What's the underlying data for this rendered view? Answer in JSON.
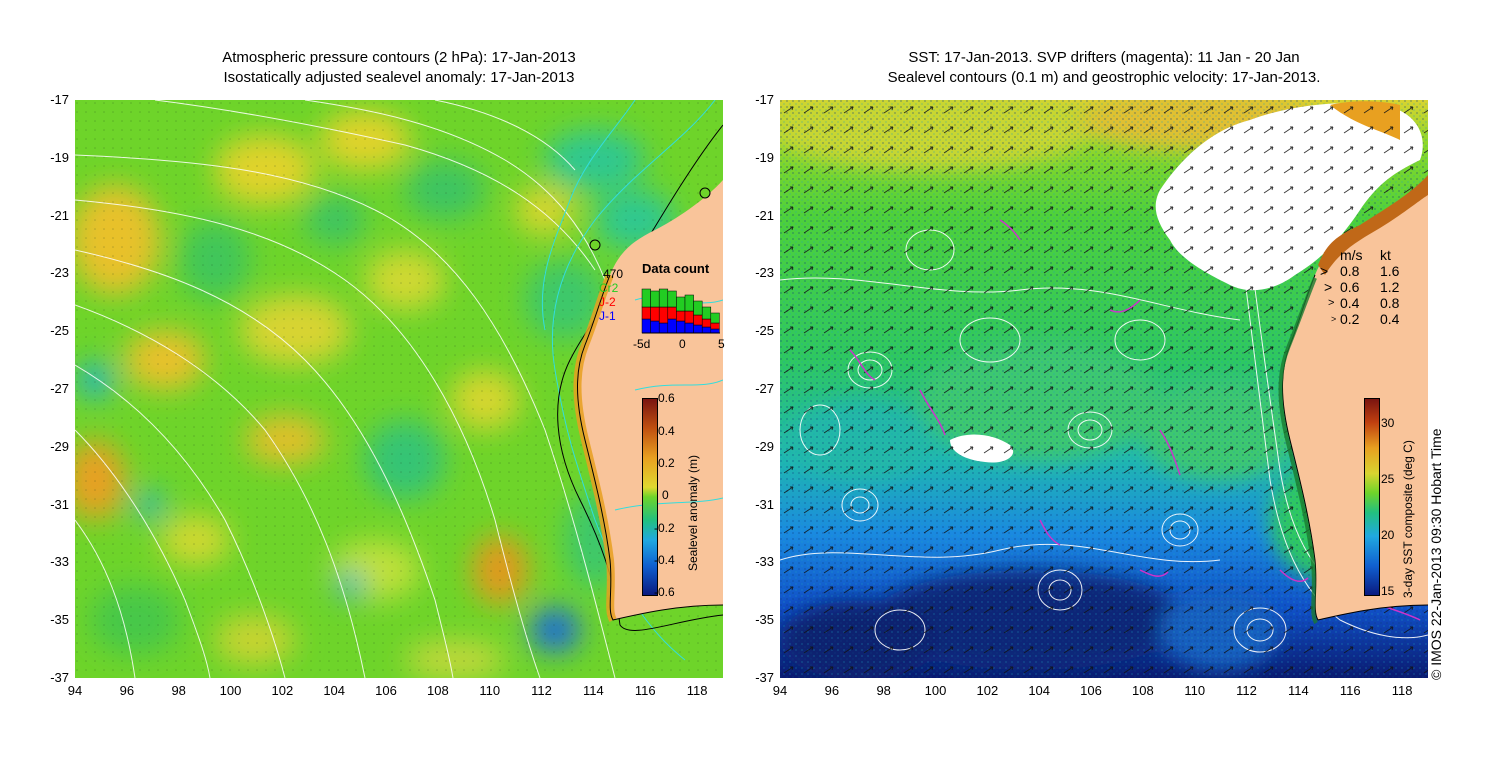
{
  "left_panel": {
    "title_line1": "Atmospheric pressure contours (2 hPa): 17-Jan-2013",
    "title_line2": "Isostatically adjusted sealevel anomaly: 17-Jan-2013",
    "y_ticks": [
      "-17",
      "-19",
      "-21",
      "-23",
      "-25",
      "-27",
      "-29",
      "-31",
      "-33",
      "-35",
      "-37"
    ],
    "x_ticks": [
      "94",
      "96",
      "98",
      "100",
      "102",
      "104",
      "106",
      "108",
      "110",
      "112",
      "114",
      "116",
      "118"
    ],
    "data_count": {
      "title": "Data count",
      "total": "470",
      "sat1": "Cr2",
      "sat2": "J-2",
      "sat3": "J-1",
      "x_ticks": [
        "-5d",
        "0",
        "5"
      ],
      "sat1_color": "#22cc22",
      "sat2_color": "#ff0000",
      "sat3_color": "#0000ff"
    },
    "colorbar": {
      "label": "Sealevel anomaly (m)",
      "ticks": [
        "0.6",
        "0.4",
        "0.2",
        "0",
        "-0.2",
        "-0.4",
        "-0.6"
      ]
    }
  },
  "right_panel": {
    "title_line1": "SST: 17-Jan-2013. SVP drifters (magenta): 11 Jan - 20 Jan",
    "title_line2": "Sealevel contours (0.1 m) and geostrophic velocity: 17-Jan-2013.",
    "y_ticks": [
      "-17",
      "-19",
      "-21",
      "-23",
      "-25",
      "-27",
      "-29",
      "-31",
      "-33",
      "-35",
      "-37"
    ],
    "x_ticks": [
      "94",
      "96",
      "98",
      "100",
      "102",
      "104",
      "106",
      "108",
      "110",
      "112",
      "114",
      "116",
      "118"
    ],
    "velocity_legend": {
      "header_ms": "m/s",
      "header_kt": "kt",
      "rows": [
        {
          "ms": "0.8",
          "kt": "1.6"
        },
        {
          "ms": "0.6",
          "kt": "1.2"
        },
        {
          "ms": "0.4",
          "kt": "0.8"
        },
        {
          "ms": "0.2",
          "kt": "0.4"
        }
      ]
    },
    "colorbar": {
      "label": "3-day SST composite (deg C)",
      "ticks": [
        "30",
        "25",
        "20",
        "15"
      ]
    }
  },
  "credit": "© IMOS 22-Jan-2013 09:30 Hobart Time",
  "colors": {
    "land": "#f9c49a",
    "drifter": "#cc33cc",
    "contour_white": "#ffffff",
    "contour_cyan": "#33dddd"
  }
}
